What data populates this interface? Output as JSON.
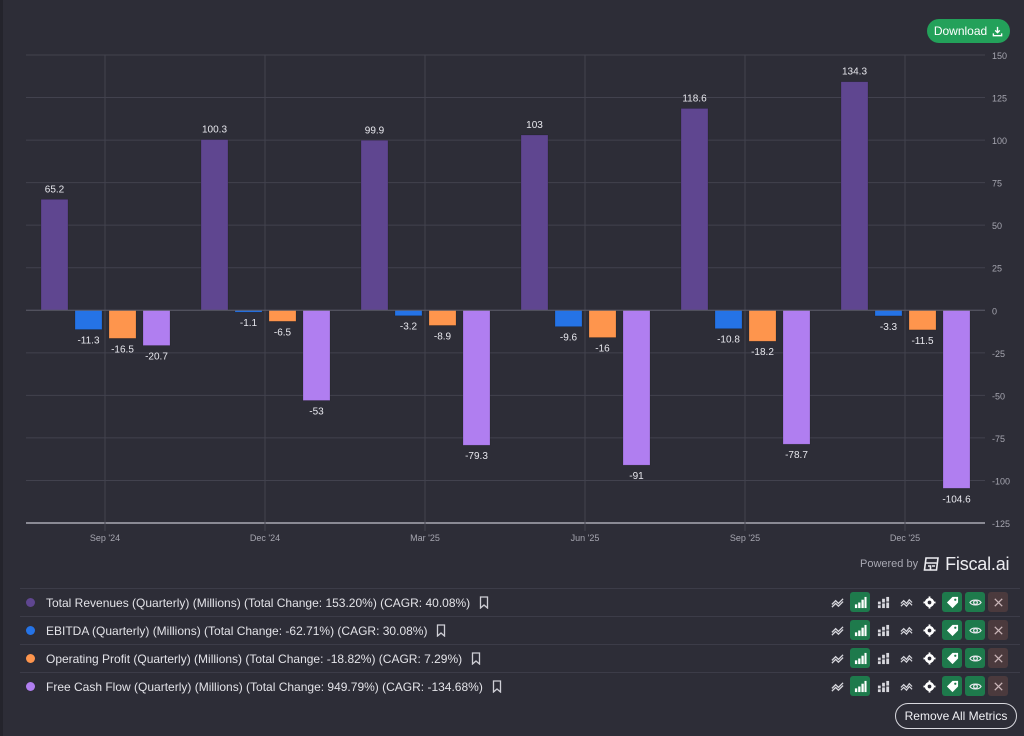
{
  "toolbar": {
    "download_label": "Download"
  },
  "branding": {
    "powered_by": "Powered by",
    "brand": "Fiscal.ai"
  },
  "colors": {
    "background": "#2d2d37",
    "revenue": "#5f4690",
    "ebitda": "#2573e6",
    "operating_profit": "#fe954d",
    "free_cash_flow": "#b07ef0",
    "download": "#23a15a",
    "active_toggle": "#1e7a4c"
  },
  "chart_data": {
    "type": "bar",
    "title": "",
    "xlabel": "",
    "ylabel": "",
    "categories": [
      "Sep '24",
      "Dec '24",
      "Mar '25",
      "Jun '25",
      "Sep '25",
      "Dec '25"
    ],
    "ylim": [
      -125,
      150
    ],
    "yticks": [
      150,
      125,
      100,
      75,
      50,
      25,
      0,
      -25,
      -50,
      -75,
      -100,
      -125
    ],
    "grid": true,
    "y_axis_side": "right",
    "legend_placement": "bottom",
    "series": [
      {
        "name": "Total Revenues",
        "color": "#5f4690",
        "values": [
          65.2,
          100.3,
          99.9,
          103,
          118.6,
          134.3
        ],
        "labels": [
          "65.2",
          "100.3",
          "99.9",
          "103",
          "118.6",
          "134.3"
        ]
      },
      {
        "name": "EBITDA",
        "color": "#2573e6",
        "values": [
          -11.3,
          -1.1,
          -3.2,
          -9.6,
          -10.8,
          -3.3
        ],
        "labels": [
          "-11.3",
          "-1.1",
          "-3.2",
          "-9.6",
          "-10.8",
          "-3.3"
        ]
      },
      {
        "name": "Operating Profit",
        "color": "#fe954d",
        "values": [
          -16.5,
          -6.5,
          -8.9,
          -16,
          -18.2,
          -11.5
        ],
        "labels": [
          "-16.5",
          "-6.5",
          "-8.9",
          "-16",
          "-18.2",
          "-11.5"
        ]
      },
      {
        "name": "Free Cash Flow",
        "color": "#b07ef0",
        "values": [
          -20.7,
          -53,
          -79.3,
          -91,
          -78.7,
          -104.6
        ],
        "labels": [
          "-20.7",
          "-53",
          "-79.3",
          "-91",
          "-78.7",
          "-104.6"
        ]
      }
    ]
  },
  "legend": [
    {
      "label": "Total Revenues (Quarterly) (Millions) (Total Change: 153.20%) (CAGR: 40.08%)",
      "color": "#5f4690"
    },
    {
      "label": "EBITDA (Quarterly) (Millions) (Total Change: -62.71%) (CAGR: 30.08%)",
      "color": "#2573e6"
    },
    {
      "label": "Operating Profit (Quarterly) (Millions) (Total Change: -18.82%) (CAGR: 7.29%)",
      "color": "#fe954d"
    },
    {
      "label": "Free Cash Flow (Quarterly) (Millions) (Total Change: 949.79%) (CAGR: -134.68%)",
      "color": "#b07ef0"
    }
  ],
  "row_actions": [
    "line-chart",
    "bar-chart",
    "stacked-bar-chart",
    "area-chart",
    "settings",
    "tag",
    "visibility",
    "remove"
  ],
  "footer": {
    "remove_all_label": "Remove All Metrics"
  }
}
